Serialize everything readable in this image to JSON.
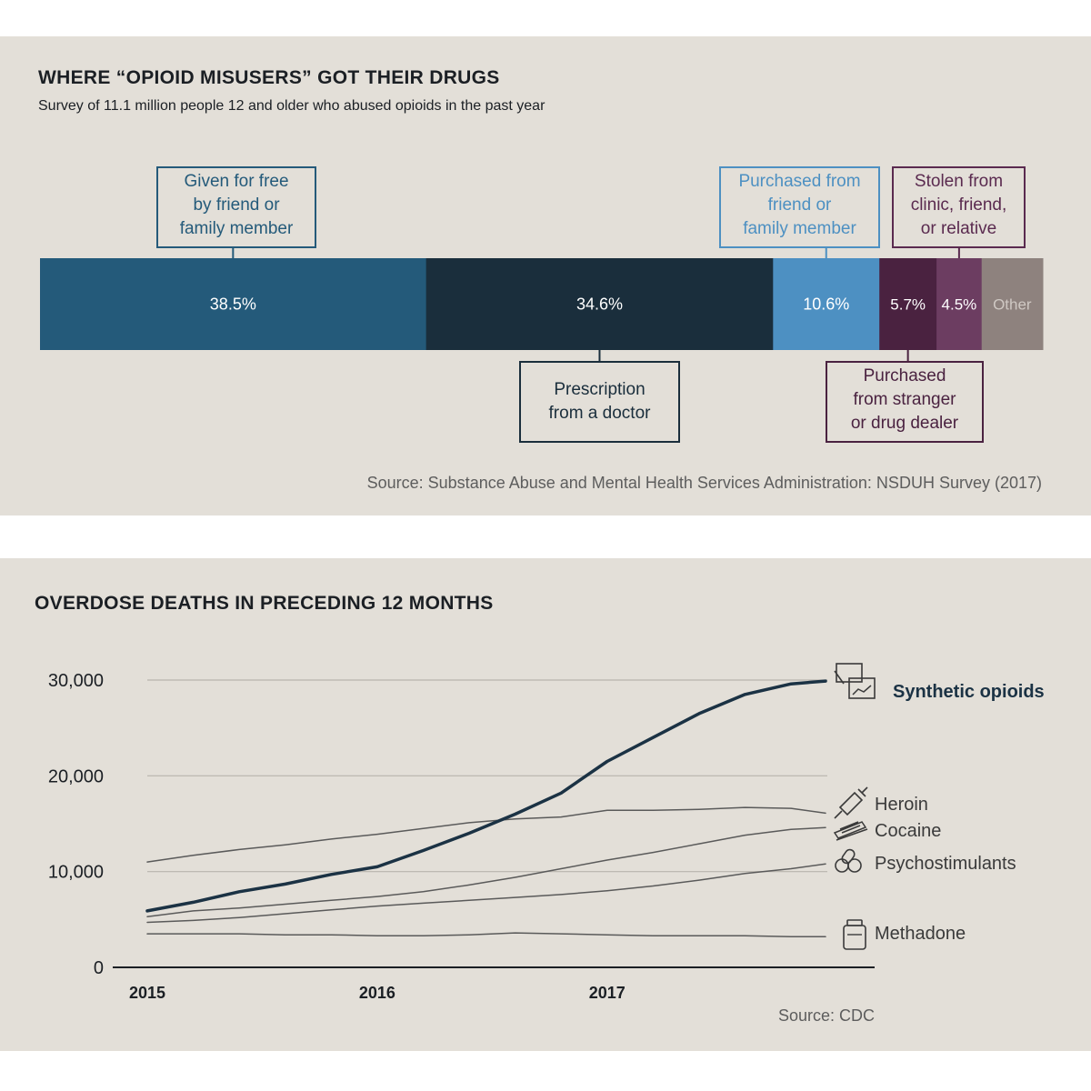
{
  "chart_data": [
    {
      "type": "bar",
      "orientation": "horizontal-stacked",
      "title": "WHERE “OPIOID MISUSERS” GOT THEIR DRUGS",
      "subtitle": "Survey of 11.1 million people 12 and older who abused opioids in the past year",
      "source": "Source: Substance Abuse and Mental Health Services Administration: NSDUH Survey (2017)",
      "segments": [
        {
          "label": "Given for free\nby friend or\nfamily member",
          "value": 38.5,
          "value_label": "38.5%",
          "color": "#245a7a"
        },
        {
          "label": "Prescription\nfrom a doctor",
          "value": 34.6,
          "value_label": "34.6%",
          "color": "#1a2e3c"
        },
        {
          "label": "Purchased from\nfriend or\nfamily member",
          "value": 10.6,
          "value_label": "10.6%",
          "color": "#4d90c2"
        },
        {
          "label": "Purchased\nfrom stranger\nor drug dealer",
          "value": 5.7,
          "value_label": "5.7%",
          "color": "#4a2240"
        },
        {
          "label": "Stolen from\nclinic, friend,\nor relative",
          "value": 4.5,
          "value_label": "4.5%",
          "color": "#6c3d61"
        },
        {
          "label": "Other",
          "value": 6.1,
          "value_label": "Other",
          "color": "#8e827e"
        }
      ]
    },
    {
      "type": "line",
      "title": "OVERDOSE DEATHS IN PRECEDING 12 MONTHS",
      "source": "Source: CDC",
      "x_ticks": [
        "2015",
        "2016",
        "2017"
      ],
      "xlim": [
        2015.0,
        2018.2
      ],
      "ylim": [
        0,
        30000
      ],
      "y_ticks": [
        0,
        10000,
        20000,
        30000
      ],
      "y_tick_labels": [
        "0",
        "10,000",
        "20,000",
        "30,000"
      ],
      "grid": true,
      "x": [
        2015.0,
        2015.2,
        2015.4,
        2015.6,
        2015.8,
        2016.0,
        2016.2,
        2016.4,
        2016.6,
        2016.8,
        2017.0,
        2017.2,
        2017.4,
        2017.6,
        2017.8,
        2017.95
      ],
      "series": [
        {
          "name": "Synthetic opioids",
          "color": "#1b3244",
          "width": 3.5,
          "values": [
            5900,
            6800,
            7900,
            8700,
            9700,
            10500,
            12200,
            14000,
            16000,
            18200,
            21500,
            24000,
            26500,
            28500,
            29600,
            29900
          ]
        },
        {
          "name": "Heroin",
          "color": "#5a5a5a",
          "width": 1.5,
          "values": [
            11000,
            11700,
            12300,
            12800,
            13400,
            13900,
            14500,
            15100,
            15500,
            15700,
            16400,
            16400,
            16500,
            16700,
            16600,
            16100
          ]
        },
        {
          "name": "Cocaine",
          "color": "#5a5a5a",
          "width": 1.5,
          "values": [
            5300,
            5900,
            6200,
            6600,
            7000,
            7400,
            7900,
            8600,
            9400,
            10300,
            11200,
            12000,
            12900,
            13800,
            14400,
            14600
          ]
        },
        {
          "name": "Psychostimulants",
          "color": "#5a5a5a",
          "width": 1.5,
          "values": [
            4700,
            4900,
            5200,
            5600,
            6000,
            6400,
            6700,
            7000,
            7300,
            7600,
            8000,
            8500,
            9100,
            9800,
            10300,
            10800
          ]
        },
        {
          "name": "Methadone",
          "color": "#5a5a5a",
          "width": 1.5,
          "values": [
            3500,
            3500,
            3500,
            3400,
            3400,
            3300,
            3300,
            3400,
            3600,
            3500,
            3400,
            3300,
            3300,
            3300,
            3200,
            3200
          ]
        }
      ],
      "icons": [
        "syringe-with-pills-icon",
        "syringe-icon",
        "cocaine-lines-icon",
        "pills-icon",
        "pill-bottle-icon"
      ]
    }
  ]
}
